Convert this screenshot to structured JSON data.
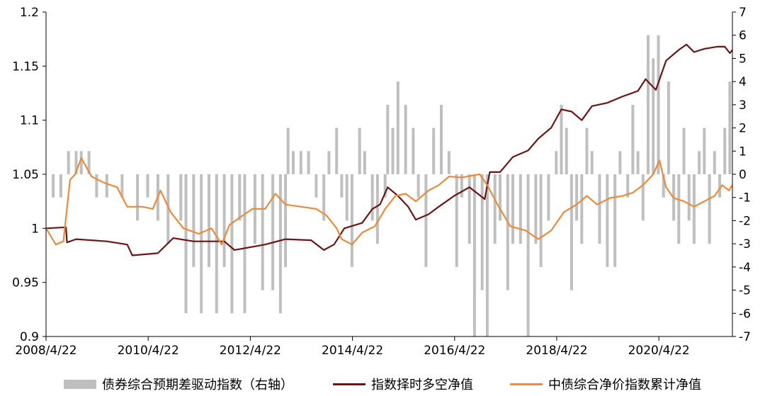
{
  "chart_data": {
    "type": "line+bar",
    "x_labels": [
      "2008/4/22",
      "2010/4/22",
      "2012/4/22",
      "2014/4/22",
      "2016/4/22",
      "2018/4/22",
      "2020/4/22"
    ],
    "x_ticks_year": [
      2008.31,
      2010.31,
      2012.31,
      2014.31,
      2016.31,
      2018.31,
      2020.31
    ],
    "x_range": [
      2008.31,
      2021.75
    ],
    "left_axis": {
      "ylim": [
        0.9,
        1.2
      ],
      "ticks": [
        0.9,
        0.95,
        1,
        1.05,
        1.1,
        1.15,
        1.2
      ]
    },
    "right_axis": {
      "ylim": [
        -7,
        7
      ],
      "ticks": [
        -7,
        -6,
        -5,
        -4,
        -3,
        -2,
        -1,
        0,
        1,
        2,
        3,
        4,
        5,
        6,
        7
      ]
    },
    "colors": {
      "bars": "#bfbfbf",
      "timing": "#6e1414",
      "index": "#ed8a3a",
      "axis": "#000000"
    },
    "series": [
      {
        "name": "债券综合预期差驱动指数（右轴）",
        "kind": "bar",
        "axis": "right",
        "points": [
          [
            2008.45,
            -1
          ],
          [
            2008.6,
            -1
          ],
          [
            2008.75,
            1
          ],
          [
            2008.9,
            1
          ],
          [
            2009.0,
            1
          ],
          [
            2009.15,
            1
          ],
          [
            2009.3,
            -1
          ],
          [
            2009.5,
            -1
          ],
          [
            2009.8,
            -1
          ],
          [
            2010.1,
            -2
          ],
          [
            2010.3,
            -1
          ],
          [
            2010.5,
            -2
          ],
          [
            2010.7,
            -3
          ],
          [
            2010.95,
            -2
          ],
          [
            2011.05,
            -6
          ],
          [
            2011.2,
            -4
          ],
          [
            2011.35,
            -6
          ],
          [
            2011.5,
            -4
          ],
          [
            2011.65,
            -6
          ],
          [
            2011.8,
            -4
          ],
          [
            2011.95,
            -6
          ],
          [
            2012.1,
            -2
          ],
          [
            2012.2,
            -6
          ],
          [
            2012.4,
            -3
          ],
          [
            2012.55,
            -5
          ],
          [
            2012.75,
            -5
          ],
          [
            2012.9,
            -6
          ],
          [
            2013.0,
            -4
          ],
          [
            2013.05,
            2
          ],
          [
            2013.15,
            1
          ],
          [
            2013.3,
            1
          ],
          [
            2013.45,
            1
          ],
          [
            2013.6,
            -1
          ],
          [
            2013.75,
            -2
          ],
          [
            2013.85,
            1
          ],
          [
            2014.0,
            2
          ],
          [
            2014.1,
            -1
          ],
          [
            2014.2,
            -2
          ],
          [
            2014.3,
            -4
          ],
          [
            2014.45,
            2
          ],
          [
            2014.55,
            1
          ],
          [
            2014.7,
            -2
          ],
          [
            2014.8,
            -3
          ],
          [
            2014.95,
            -1
          ],
          [
            2015.0,
            3
          ],
          [
            2015.1,
            2
          ],
          [
            2015.2,
            4
          ],
          [
            2015.35,
            3
          ],
          [
            2015.5,
            2
          ],
          [
            2015.6,
            -1
          ],
          [
            2015.75,
            -4
          ],
          [
            2015.9,
            2
          ],
          [
            2016.05,
            3
          ],
          [
            2016.2,
            1
          ],
          [
            2016.35,
            -4
          ],
          [
            2016.45,
            -1
          ],
          [
            2016.6,
            -3
          ],
          [
            2016.7,
            -7
          ],
          [
            2016.85,
            -5
          ],
          [
            2016.95,
            -7
          ],
          [
            2017.1,
            -3
          ],
          [
            2017.2,
            -2
          ],
          [
            2017.35,
            -5
          ],
          [
            2017.45,
            -3
          ],
          [
            2017.6,
            -3
          ],
          [
            2017.75,
            -7
          ],
          [
            2017.9,
            -3
          ],
          [
            2018.0,
            -4
          ],
          [
            2018.15,
            -2
          ],
          [
            2018.3,
            1
          ],
          [
            2018.4,
            3
          ],
          [
            2018.5,
            2
          ],
          [
            2018.6,
            -5
          ],
          [
            2018.7,
            -2
          ],
          [
            2018.8,
            -3
          ],
          [
            2018.9,
            2
          ],
          [
            2019.0,
            1
          ],
          [
            2019.15,
            -3
          ],
          [
            2019.3,
            -4
          ],
          [
            2019.45,
            -4
          ],
          [
            2019.55,
            1
          ],
          [
            2019.7,
            -1
          ],
          [
            2019.8,
            3
          ],
          [
            2019.9,
            1
          ],
          [
            2020.0,
            -2
          ],
          [
            2020.1,
            6
          ],
          [
            2020.2,
            5
          ],
          [
            2020.3,
            6
          ],
          [
            2020.4,
            -1
          ],
          [
            2020.5,
            4
          ],
          [
            2020.6,
            -2
          ],
          [
            2020.7,
            -3
          ],
          [
            2020.8,
            2
          ],
          [
            2020.9,
            -2
          ],
          [
            2021.0,
            -3
          ],
          [
            2021.1,
            1
          ],
          [
            2021.2,
            2
          ],
          [
            2021.3,
            -3
          ],
          [
            2021.4,
            1
          ],
          [
            2021.5,
            -1
          ],
          [
            2021.6,
            2
          ],
          [
            2021.7,
            4
          ]
        ]
      },
      {
        "name": "指数择时多空净值",
        "kind": "line",
        "axis": "left",
        "points": [
          [
            2008.31,
            1.0
          ],
          [
            2008.7,
            1.001
          ],
          [
            2008.72,
            0.987
          ],
          [
            2008.9,
            0.99
          ],
          [
            2009.5,
            0.988
          ],
          [
            2009.9,
            0.985
          ],
          [
            2010.0,
            0.975
          ],
          [
            2010.5,
            0.977
          ],
          [
            2010.8,
            0.991
          ],
          [
            2011.2,
            0.988
          ],
          [
            2011.8,
            0.988
          ],
          [
            2012.0,
            0.98
          ],
          [
            2012.6,
            0.985
          ],
          [
            2013.0,
            0.99
          ],
          [
            2013.5,
            0.989
          ],
          [
            2013.75,
            0.98
          ],
          [
            2013.95,
            0.985
          ],
          [
            2014.15,
            1.0
          ],
          [
            2014.5,
            1.005
          ],
          [
            2014.7,
            1.018
          ],
          [
            2014.85,
            1.022
          ],
          [
            2015.0,
            1.038
          ],
          [
            2015.2,
            1.03
          ],
          [
            2015.4,
            1.02
          ],
          [
            2015.55,
            1.008
          ],
          [
            2015.8,
            1.013
          ],
          [
            2016.0,
            1.02
          ],
          [
            2016.3,
            1.03
          ],
          [
            2016.6,
            1.038
          ],
          [
            2016.9,
            1.027
          ],
          [
            2017.0,
            1.052
          ],
          [
            2017.2,
            1.052
          ],
          [
            2017.45,
            1.066
          ],
          [
            2017.75,
            1.072
          ],
          [
            2017.95,
            1.083
          ],
          [
            2018.2,
            1.093
          ],
          [
            2018.4,
            1.11
          ],
          [
            2018.6,
            1.108
          ],
          [
            2018.8,
            1.1
          ],
          [
            2019.0,
            1.113
          ],
          [
            2019.3,
            1.116
          ],
          [
            2019.6,
            1.122
          ],
          [
            2019.9,
            1.127
          ],
          [
            2020.05,
            1.138
          ],
          [
            2020.25,
            1.128
          ],
          [
            2020.45,
            1.155
          ],
          [
            2020.7,
            1.165
          ],
          [
            2020.85,
            1.17
          ],
          [
            2021.0,
            1.163
          ],
          [
            2021.2,
            1.166
          ],
          [
            2021.45,
            1.168
          ],
          [
            2021.6,
            1.168
          ],
          [
            2021.7,
            1.162
          ],
          [
            2021.75,
            1.165
          ]
        ]
      },
      {
        "name": "中债综合净价指数累计净值",
        "kind": "line",
        "axis": "left",
        "points": [
          [
            2008.31,
            1.0
          ],
          [
            2008.5,
            0.985
          ],
          [
            2008.65,
            0.988
          ],
          [
            2008.78,
            1.045
          ],
          [
            2008.88,
            1.05
          ],
          [
            2009.0,
            1.065
          ],
          [
            2009.2,
            1.048
          ],
          [
            2009.45,
            1.042
          ],
          [
            2009.7,
            1.038
          ],
          [
            2009.9,
            1.02
          ],
          [
            2010.2,
            1.02
          ],
          [
            2010.4,
            1.018
          ],
          [
            2010.55,
            1.035
          ],
          [
            2010.75,
            1.015
          ],
          [
            2011.0,
            1.0
          ],
          [
            2011.3,
            0.995
          ],
          [
            2011.55,
            1.0
          ],
          [
            2011.75,
            0.985
          ],
          [
            2011.9,
            1.003
          ],
          [
            2012.1,
            1.01
          ],
          [
            2012.35,
            1.018
          ],
          [
            2012.6,
            1.018
          ],
          [
            2012.8,
            1.032
          ],
          [
            2013.0,
            1.022
          ],
          [
            2013.3,
            1.02
          ],
          [
            2013.6,
            1.018
          ],
          [
            2013.8,
            1.012
          ],
          [
            2014.0,
            1.0
          ],
          [
            2014.1,
            0.99
          ],
          [
            2014.3,
            0.985
          ],
          [
            2014.5,
            0.996
          ],
          [
            2014.75,
            1.002
          ],
          [
            2014.95,
            1.018
          ],
          [
            2015.15,
            1.03
          ],
          [
            2015.35,
            1.032
          ],
          [
            2015.55,
            1.025
          ],
          [
            2015.8,
            1.035
          ],
          [
            2016.0,
            1.04
          ],
          [
            2016.2,
            1.048
          ],
          [
            2016.45,
            1.047
          ],
          [
            2016.8,
            1.05
          ],
          [
            2016.95,
            1.04
          ],
          [
            2017.15,
            1.022
          ],
          [
            2017.4,
            1.002
          ],
          [
            2017.7,
            0.998
          ],
          [
            2017.95,
            0.99
          ],
          [
            2018.2,
            0.998
          ],
          [
            2018.45,
            1.015
          ],
          [
            2018.7,
            1.022
          ],
          [
            2018.9,
            1.03
          ],
          [
            2019.1,
            1.022
          ],
          [
            2019.35,
            1.028
          ],
          [
            2019.6,
            1.03
          ],
          [
            2019.8,
            1.033
          ],
          [
            2020.0,
            1.04
          ],
          [
            2020.2,
            1.05
          ],
          [
            2020.32,
            1.063
          ],
          [
            2020.45,
            1.038
          ],
          [
            2020.6,
            1.028
          ],
          [
            2020.8,
            1.025
          ],
          [
            2021.0,
            1.02
          ],
          [
            2021.2,
            1.025
          ],
          [
            2021.4,
            1.03
          ],
          [
            2021.55,
            1.04
          ],
          [
            2021.68,
            1.035
          ],
          [
            2021.75,
            1.04
          ]
        ]
      }
    ]
  }
}
